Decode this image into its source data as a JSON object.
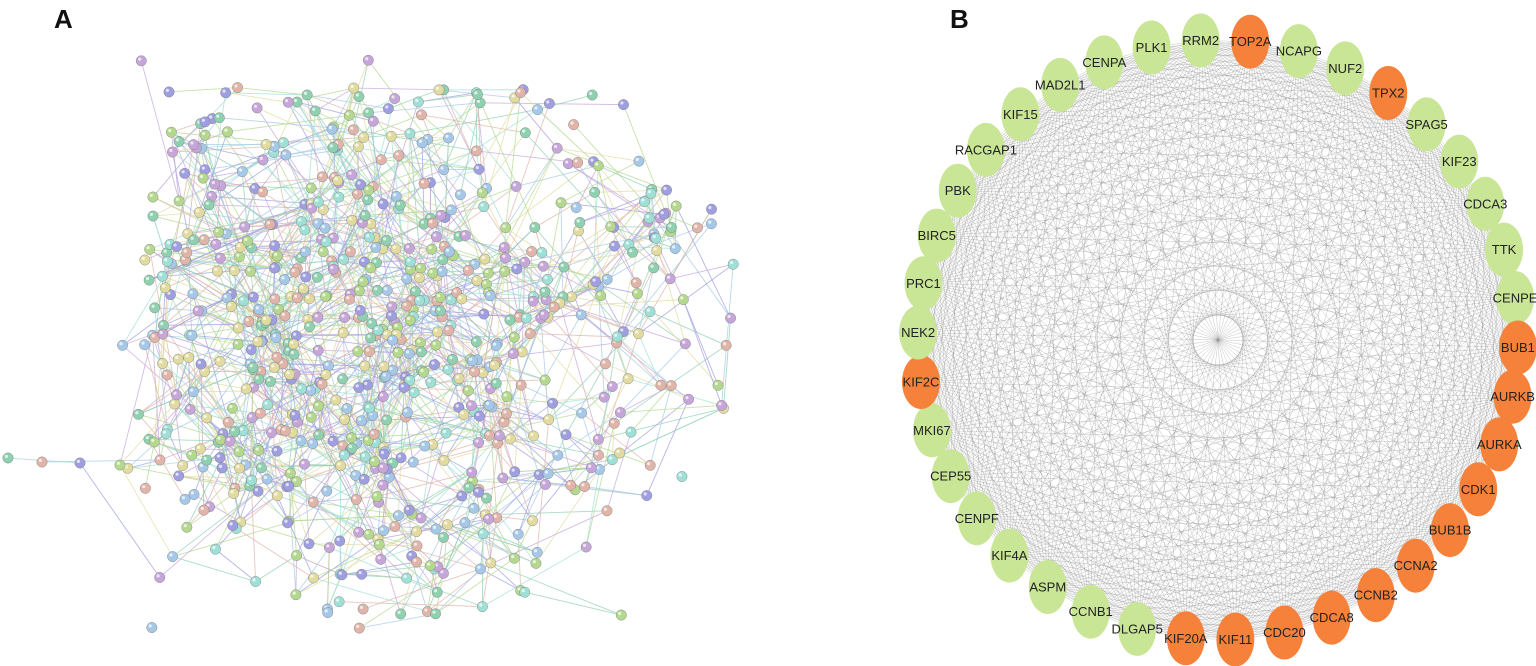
{
  "panels": {
    "a": {
      "letter": "A"
    },
    "b": {
      "letter": "B",
      "colors": {
        "hub": "#f5813a",
        "other": "#c9e596",
        "edge": "#888888"
      },
      "genes": [
        {
          "name": "TOP2A",
          "hub": true
        },
        {
          "name": "NCAPG",
          "hub": false
        },
        {
          "name": "NUF2",
          "hub": false
        },
        {
          "name": "TPX2",
          "hub": true
        },
        {
          "name": "SPAG5",
          "hub": false
        },
        {
          "name": "KIF23",
          "hub": false
        },
        {
          "name": "CDCA3",
          "hub": false
        },
        {
          "name": "TTK",
          "hub": false
        },
        {
          "name": "CENPE",
          "hub": false
        },
        {
          "name": "BUB1",
          "hub": true
        },
        {
          "name": "AURKB",
          "hub": true
        },
        {
          "name": "AURKA",
          "hub": true
        },
        {
          "name": "CDK1",
          "hub": true
        },
        {
          "name": "BUB1B",
          "hub": true
        },
        {
          "name": "CCNA2",
          "hub": true
        },
        {
          "name": "CCNB2",
          "hub": true
        },
        {
          "name": "CDCA8",
          "hub": true
        },
        {
          "name": "CDC20",
          "hub": true
        },
        {
          "name": "KIF11",
          "hub": true
        },
        {
          "name": "KIF20A",
          "hub": true
        },
        {
          "name": "DLGAP5",
          "hub": false
        },
        {
          "name": "CCNB1",
          "hub": false
        },
        {
          "name": "ASPM",
          "hub": false
        },
        {
          "name": "KIF4A",
          "hub": false
        },
        {
          "name": "CENPF",
          "hub": false
        },
        {
          "name": "CEP55",
          "hub": false
        },
        {
          "name": "MKI67",
          "hub": false
        },
        {
          "name": "KIF2C",
          "hub": true
        },
        {
          "name": "NEK2",
          "hub": false
        },
        {
          "name": "PRC1",
          "hub": false
        },
        {
          "name": "BIRC5",
          "hub": false
        },
        {
          "name": "PBK",
          "hub": false
        },
        {
          "name": "RACGAP1",
          "hub": false
        },
        {
          "name": "KIF15",
          "hub": false
        },
        {
          "name": "MAD2L1",
          "hub": false
        },
        {
          "name": "CENPA",
          "hub": false
        },
        {
          "name": "PLK1",
          "hub": false
        },
        {
          "name": "RRM2",
          "hub": false
        }
      ]
    }
  }
}
